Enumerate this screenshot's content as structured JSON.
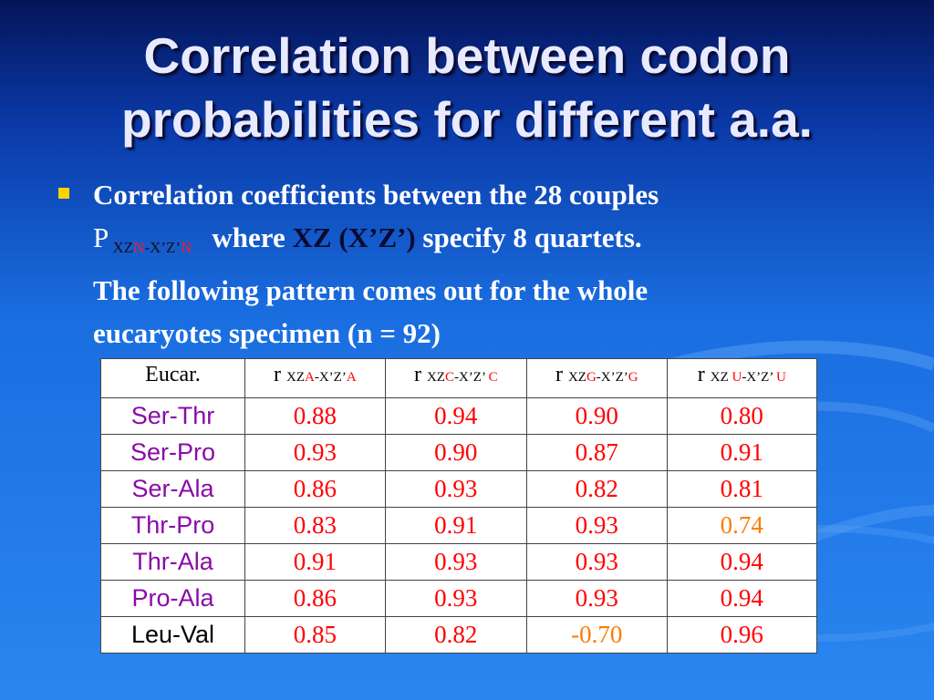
{
  "title": {
    "line1": "Correlation between codon",
    "line2": "probabilities for different a.a."
  },
  "bullet": {
    "line1": "Correlation coefficients between the 28 couples",
    "p_symbol": "P",
    "p_sub_xz": "XZ",
    "p_sub_n1": "N",
    "p_sub_mid": "-X’Z’",
    "p_sub_n2": "N",
    "line2_text_a": "where ",
    "line2_xz": "XZ (X’Z’)",
    "line2_text_b": " specify 8 quartets.",
    "line3": "The following pattern comes out for the whole",
    "line4": "eucaryotes specimen (n = 92)"
  },
  "table": {
    "corner": "Eucar.",
    "headers": [
      {
        "r": "r",
        "pre": "XZ",
        "nuc": "A",
        "mid": "-X’Z’",
        "nuc2": "A"
      },
      {
        "r": "r",
        "pre": "XZ",
        "nuc": "C",
        "mid": "-X’Z’ ",
        "nuc2": "C"
      },
      {
        "r": "r",
        "pre": "XZ",
        "nuc": "G",
        "mid": "-X’Z’",
        "nuc2": "G"
      },
      {
        "r": "r",
        "pre": "XZ ",
        "nuc": "U",
        "mid": "-X’Z’ ",
        "nuc2": "U"
      }
    ],
    "rows": [
      {
        "label": "Ser-Thr",
        "values": [
          "0.88",
          "0.94",
          "0.90",
          "0.80"
        ]
      },
      {
        "label": "Ser-Pro",
        "values": [
          "0.93",
          "0.90",
          "0.87",
          "0.91"
        ]
      },
      {
        "label": "Ser-Ala",
        "values": [
          "0.86",
          "0.93",
          "0.82",
          "0.81"
        ]
      },
      {
        "label": "Thr-Pro",
        "values": [
          "0.83",
          "0.91",
          "0.93",
          "0.74"
        ]
      },
      {
        "label": "Thr-Ala",
        "values": [
          "0.91",
          "0.93",
          "0.93",
          "0.94"
        ]
      },
      {
        "label": "Pro-Ala",
        "values": [
          "0.86",
          "0.93",
          "0.93",
          "0.94"
        ]
      },
      {
        "label": "Leu-Val",
        "values": [
          "0.85",
          "0.82",
          "-0.70",
          "0.96"
        ]
      }
    ]
  },
  "colors": {
    "value_red": "#ff0000",
    "value_orange": "#ff7a00",
    "label_purple": "#8a0aa8",
    "bullet_yellow": "#ffd400"
  }
}
